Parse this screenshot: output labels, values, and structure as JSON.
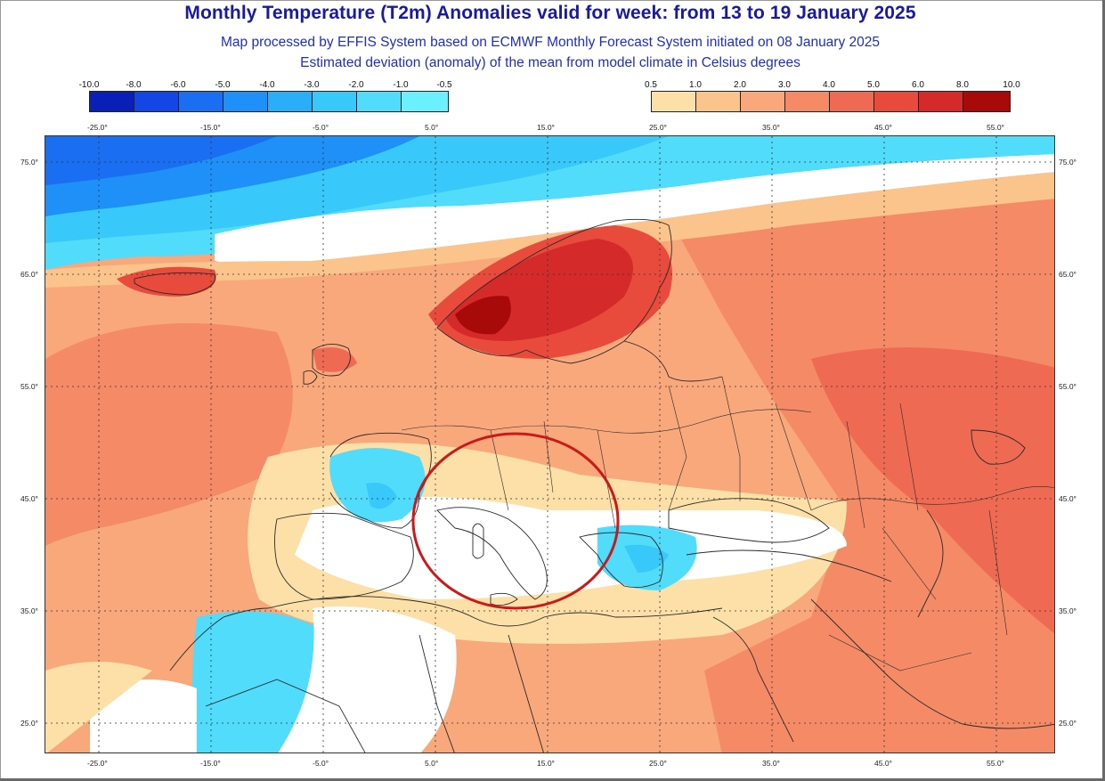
{
  "title": "Monthly Temperature (T2m) Anomalies valid for week: from 13 to 19 January 2025",
  "subtitle_1": "Map processed by EFFIS System based on ECMWF Monthly Forecast System initiated on 08 January 2025",
  "subtitle_2": "Estimated deviation (anomaly) of the mean from model climate in Celsius degrees",
  "legend_negative": {
    "labels": [
      "-10.0",
      "-8.0",
      "-6.0",
      "-5.0",
      "-4.0",
      "-3.0",
      "-2.0",
      "-1.0",
      "-0.5"
    ],
    "colors": [
      "#0a1eb8",
      "#1446e6",
      "#1a6ef2",
      "#1e90f8",
      "#2aaef8",
      "#38c8fa",
      "#52dcfc",
      "#6af0fe"
    ]
  },
  "legend_positive": {
    "labels": [
      "0.5",
      "1.0",
      "2.0",
      "3.0",
      "4.0",
      "5.0",
      "6.0",
      "8.0",
      "10.0"
    ],
    "colors": [
      "#fde0a8",
      "#fbc48c",
      "#f8a87a",
      "#f48a66",
      "#ef6a52",
      "#e84a3c",
      "#d42a2a",
      "#a80a0a"
    ]
  },
  "lon_labels": [
    "-25.0°",
    "-15.0°",
    "-5.0°",
    "5.0°",
    "15.0°",
    "25.0°",
    "35.0°",
    "45.0°",
    "55.0°"
  ],
  "lat_labels": [
    "75.0°",
    "65.0°",
    "55.0°",
    "45.0°",
    "35.0°",
    "25.0°"
  ],
  "colors": {
    "title": "#1a1aa0",
    "subtitle": "#1f2fc0",
    "highlight_circle": "#cc1818",
    "coast": "#2a2a2a",
    "grid": "#333333"
  }
}
